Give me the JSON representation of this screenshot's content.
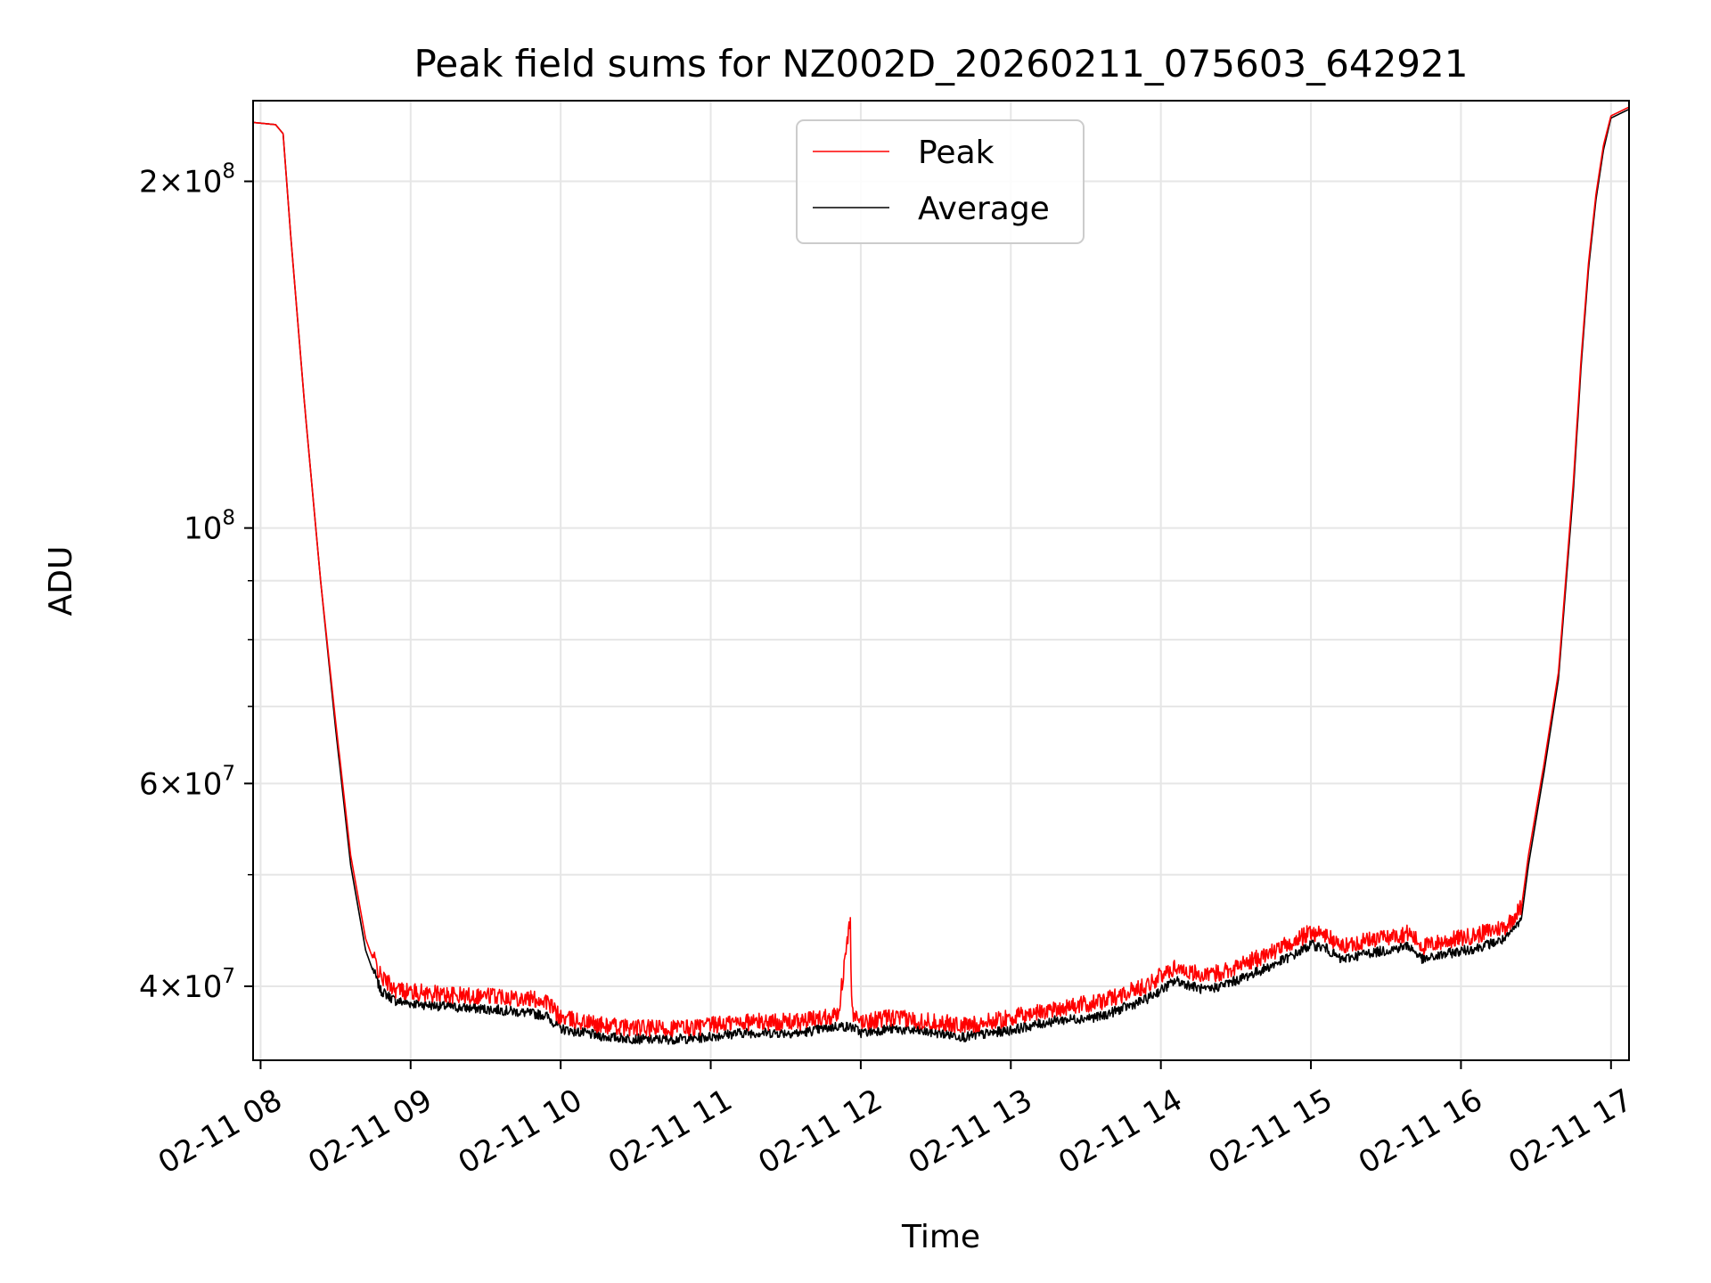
{
  "chart_data": {
    "type": "line",
    "title": "Peak field sums for NZ002D_20260211_075603_642921",
    "xlabel": "Time",
    "ylabel": "ADU",
    "yscale": "log",
    "ylim": [
      34500000,
      235000000
    ],
    "xlim_hours": [
      7.95,
      17.12
    ],
    "grid": true,
    "legend_position": "upper-center",
    "x_ticks": [
      {
        "hour": 8,
        "label": "02-11 08"
      },
      {
        "hour": 9,
        "label": "02-11 09"
      },
      {
        "hour": 10,
        "label": "02-11 10"
      },
      {
        "hour": 11,
        "label": "02-11 11"
      },
      {
        "hour": 12,
        "label": "02-11 12"
      },
      {
        "hour": 13,
        "label": "02-11 13"
      },
      {
        "hour": 14,
        "label": "02-11 14"
      },
      {
        "hour": 15,
        "label": "02-11 15"
      },
      {
        "hour": 16,
        "label": "02-11 16"
      },
      {
        "hour": 17,
        "label": "02-11 17"
      }
    ],
    "y_ticks_major": [
      {
        "value": 40000000,
        "mantissa": "4",
        "exp": "7"
      },
      {
        "value": 60000000,
        "mantissa": "6",
        "exp": "7"
      },
      {
        "value": 100000000,
        "mantissa": "",
        "exp": "8"
      },
      {
        "value": 200000000,
        "mantissa": "2",
        "exp": "8"
      }
    ],
    "y_ticks_minor": [
      50000000,
      70000000,
      80000000,
      90000000
    ],
    "series": [
      {
        "name": "Peak",
        "color": "#ff0000",
        "hours": [
          7.95,
          8.1,
          8.15,
          8.2,
          8.3,
          8.4,
          8.5,
          8.6,
          8.7,
          8.8,
          8.9,
          9.0,
          9.3,
          9.6,
          9.9,
          10.0,
          10.3,
          10.6,
          10.9,
          11.2,
          11.6,
          11.85,
          11.93,
          11.94,
          11.95,
          12.0,
          12.2,
          12.5,
          12.7,
          13.0,
          13.3,
          13.6,
          13.9,
          14.1,
          14.3,
          14.5,
          14.7,
          14.9,
          15.0,
          15.1,
          15.2,
          15.35,
          15.5,
          15.65,
          15.75,
          15.9,
          16.1,
          16.3,
          16.4,
          16.45,
          16.55,
          16.65,
          16.75,
          16.8,
          16.85,
          16.9,
          16.95,
          17.0,
          17.12
        ],
        "values": [
          225000000,
          224000000,
          220000000,
          180000000,
          125000000,
          90000000,
          68000000,
          52000000,
          44000000,
          40500000,
          39500000,
          39300000,
          39000000,
          39000000,
          38600000,
          37300000,
          36700000,
          36500000,
          36600000,
          37000000,
          37000000,
          37600000,
          45500000,
          38000000,
          37300000,
          37000000,
          37300000,
          37000000,
          36700000,
          37300000,
          38000000,
          38500000,
          39800000,
          41300000,
          40500000,
          41300000,
          42300000,
          43500000,
          44300000,
          44000000,
          43000000,
          43500000,
          43800000,
          44200000,
          43000000,
          43500000,
          44000000,
          44800000,
          46500000,
          52000000,
          62000000,
          75000000,
          110000000,
          140000000,
          170000000,
          195000000,
          215000000,
          228000000,
          232000000
        ]
      },
      {
        "name": "Average",
        "color": "#000000",
        "hours": [
          7.95,
          8.1,
          8.15,
          8.2,
          8.3,
          8.4,
          8.5,
          8.6,
          8.7,
          8.8,
          8.9,
          9.0,
          9.3,
          9.6,
          9.9,
          10.0,
          10.3,
          10.6,
          10.9,
          11.2,
          11.6,
          11.85,
          11.95,
          12.0,
          12.2,
          12.5,
          12.7,
          13.0,
          13.3,
          13.6,
          13.9,
          14.1,
          14.3,
          14.5,
          14.7,
          14.9,
          15.0,
          15.1,
          15.2,
          15.35,
          15.5,
          15.65,
          15.75,
          15.9,
          16.1,
          16.3,
          16.4,
          16.45,
          16.55,
          16.65,
          16.75,
          16.8,
          16.85,
          16.9,
          16.95,
          17.0,
          17.12
        ],
        "values": [
          225000000,
          224000000,
          220000000,
          180000000,
          125000000,
          90000000,
          67000000,
          51000000,
          43000000,
          39500000,
          38700000,
          38500000,
          38200000,
          38000000,
          37600000,
          36600000,
          36000000,
          35800000,
          35900000,
          36300000,
          36300000,
          36800000,
          36700000,
          36300000,
          36600000,
          36300000,
          36000000,
          36500000,
          37200000,
          37500000,
          38800000,
          40300000,
          39500000,
          40300000,
          41300000,
          42500000,
          43300000,
          43000000,
          42000000,
          42500000,
          42800000,
          43200000,
          42000000,
          42500000,
          43000000,
          43800000,
          45500000,
          51000000,
          61000000,
          74000000,
          108000000,
          138000000,
          168000000,
          193000000,
          213000000,
          227000000,
          231000000
        ]
      }
    ]
  }
}
